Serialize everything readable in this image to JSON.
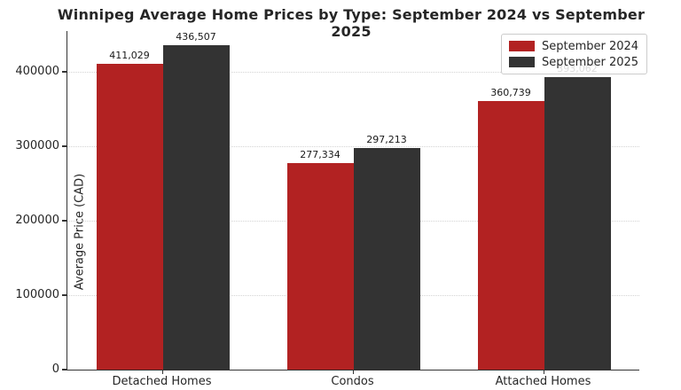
{
  "chart_data": {
    "type": "bar",
    "title": "Winnipeg Average Home Prices by Type: September 2024 vs September 2025",
    "ylabel": "Average Price (CAD)",
    "xlabel": "",
    "categories": [
      "Detached Homes",
      "Condos",
      "Attached Homes"
    ],
    "series": [
      {
        "name": "September 2024",
        "color": "#b22222",
        "values": [
          411029,
          277334,
          360739
        ],
        "value_labels": [
          "411,029",
          "277,334",
          "360,739"
        ]
      },
      {
        "name": "September 2025",
        "color": "#333333",
        "values": [
          436507,
          297213,
          393062
        ],
        "value_labels": [
          "436,507",
          "297,213",
          "393,062"
        ]
      }
    ],
    "ylim": [
      0,
      455000
    ],
    "yticks": [
      0,
      100000,
      200000,
      300000,
      400000
    ],
    "ytick_labels": [
      "0",
      "100000",
      "200000",
      "300000",
      "400000"
    ],
    "grid": "horizontal-dotted",
    "legend_position": "upper-right"
  }
}
